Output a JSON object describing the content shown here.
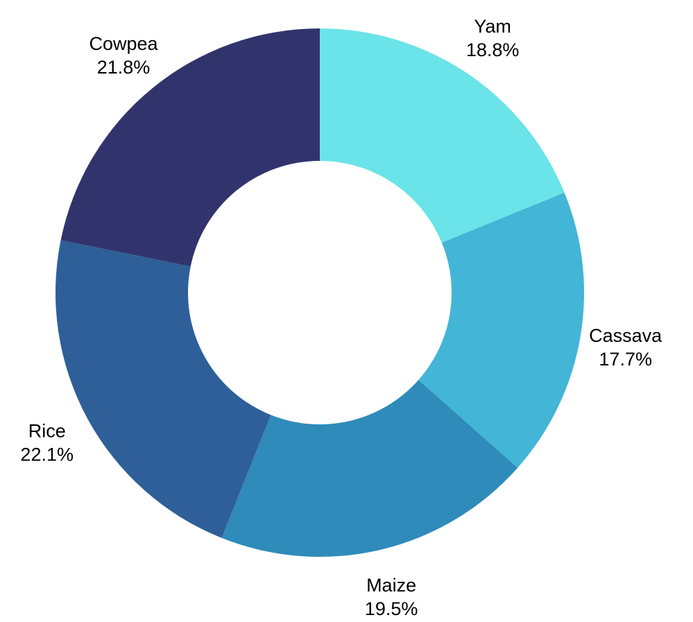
{
  "chart_data": {
    "type": "pie",
    "variant": "donut",
    "start_angle": "12 o'clock",
    "direction": "clockwise",
    "categories": [
      "Yam",
      "Cassava",
      "Maize",
      "Rice",
      "Cowpea"
    ],
    "values": [
      18.8,
      17.7,
      19.5,
      22.1,
      21.8
    ],
    "percent_labels": [
      "18.8%",
      "17.7%",
      "19.5%",
      "22.1%",
      "21.8%"
    ],
    "colors": [
      "#6ae4e8",
      "#43b5d6",
      "#2e8bba",
      "#2e5f98",
      "#31346c"
    ],
    "legend": "none",
    "title": ""
  }
}
